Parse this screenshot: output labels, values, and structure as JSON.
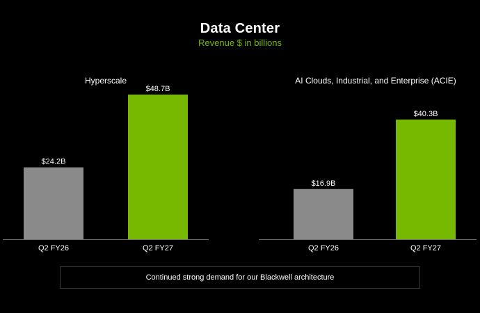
{
  "header": {
    "title": "Data Center",
    "subtitle": "Revenue $ in billions"
  },
  "colors": {
    "background": "#000000",
    "prior": "#8a8a8a",
    "current": "#76b900",
    "subtitle": "#76b900",
    "axis": "#6e6e6e"
  },
  "chart_data": [
    {
      "type": "bar",
      "title": "Hyperscale",
      "categories": [
        "Q2 FY26",
        "Q2 FY27"
      ],
      "values": [
        24.2,
        48.7
      ],
      "data_labels": [
        "$24.2B",
        "$48.7B"
      ],
      "ylim": [
        0,
        55
      ],
      "grid": false
    },
    {
      "type": "bar",
      "title": "AI Clouds, Industrial, and Enterprise (ACIE)",
      "categories": [
        "Q2 FY26",
        "Q2 FY27"
      ],
      "values": [
        16.9,
        40.3
      ],
      "data_labels": [
        "$16.9B",
        "$40.3B"
      ],
      "ylim": [
        0,
        55
      ],
      "grid": false
    }
  ],
  "footer": {
    "note": "Continued strong demand for our Blackwell architecture"
  }
}
